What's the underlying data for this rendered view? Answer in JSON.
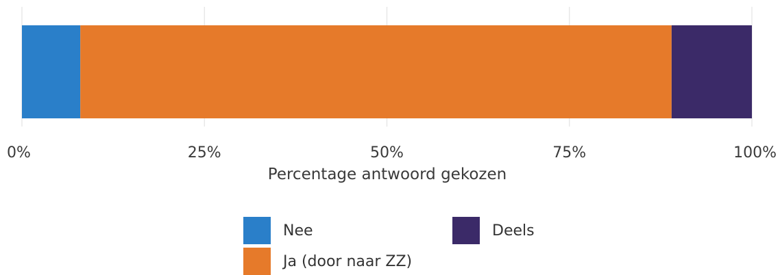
{
  "chart_data": {
    "type": "bar",
    "orientation": "horizontal",
    "stacked": true,
    "xlabel": "Percentage antwoord gekozen",
    "xlim": [
      0,
      100
    ],
    "x_ticks": [
      "0%",
      "25%",
      "50%",
      "75%",
      "100%"
    ],
    "grid": true,
    "legend_position": "bottom",
    "series": [
      {
        "name": "Nee",
        "values": [
          8
        ],
        "color": "#2a7fc9"
      },
      {
        "name": "Ja (door naar ZZ)",
        "values": [
          81
        ],
        "color": "#e67a2a"
      },
      {
        "name": "Deels",
        "values": [
          11
        ],
        "color": "#3b2a68"
      }
    ]
  }
}
